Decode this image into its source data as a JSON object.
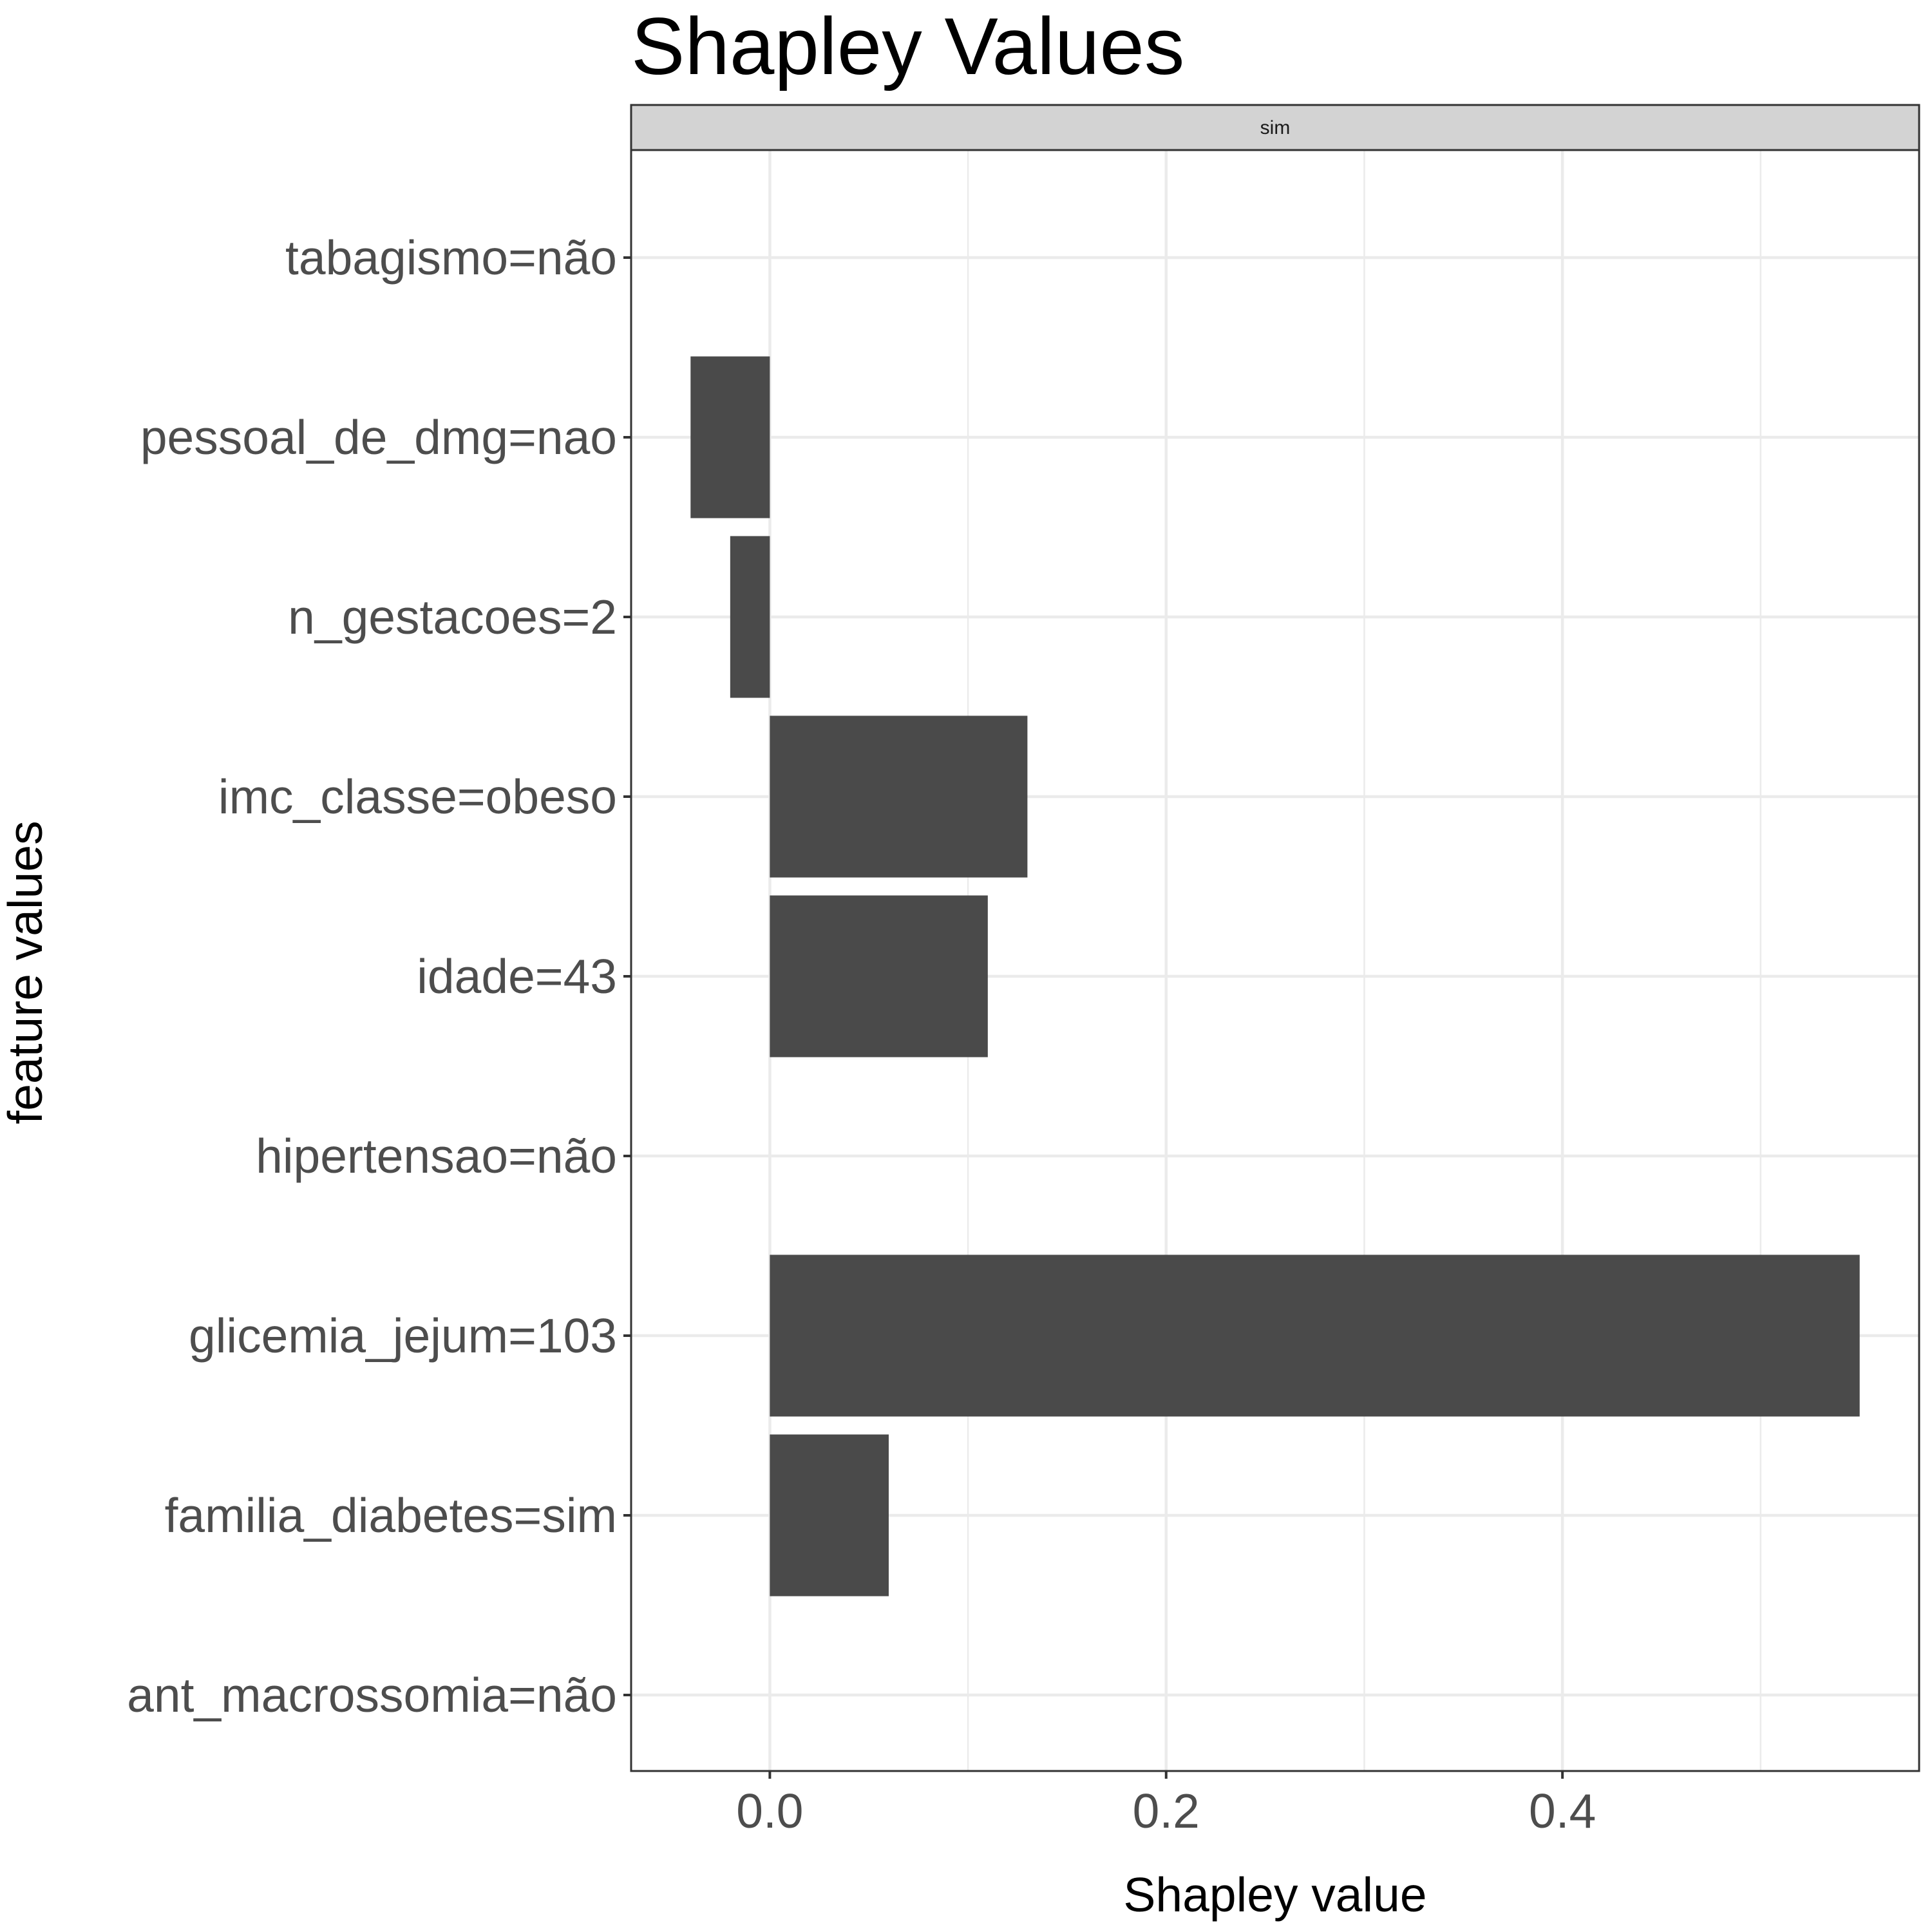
{
  "chart_data": {
    "type": "bar",
    "orientation": "horizontal",
    "title": "Shapley Values",
    "facet_label": "sim",
    "xlabel": "Shapley value",
    "ylabel": "feature values",
    "xlim": [
      -0.07,
      0.58
    ],
    "x_ticks": [
      0.0,
      0.2,
      0.4
    ],
    "x_tick_labels": [
      "0.0",
      "0.2",
      "0.4"
    ],
    "grid": true,
    "bar_color": "#4a4a4a",
    "categories": [
      "tabagismo=não",
      "pessoal_de_dmg=nao",
      "n_gestacoes=2",
      "imc_classe=obeso",
      "idade=43",
      "hipertensao=não",
      "glicemia_jejum=103",
      "familia_diabetes=sim",
      "ant_macrossomia=não"
    ],
    "values": [
      0.0,
      -0.04,
      -0.02,
      0.13,
      0.11,
      0.0,
      0.55,
      0.06,
      0.0
    ]
  }
}
